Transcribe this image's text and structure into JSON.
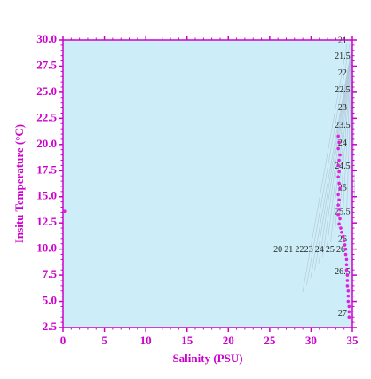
{
  "chart_data": {
    "type": "scatter",
    "x_label": "Salinity (PSU)",
    "y_label": "Insitu Temperature (°C)",
    "xlim": [
      0,
      35
    ],
    "xticks": [
      0,
      5,
      10,
      15,
      20,
      25,
      30,
      35
    ],
    "ylim": [
      2.5,
      30
    ],
    "yticks": [
      2.5,
      {
        "value": 5,
        "label": "5.0"
      },
      7.5,
      {
        "value": 10,
        "label": "10.0"
      },
      12.5,
      {
        "value": 15,
        "label": "15.0"
      },
      17.5,
      {
        "value": 20,
        "label": "20.0"
      },
      22.5,
      {
        "value": 25,
        "label": "25.0"
      },
      27.5,
      {
        "value": 30,
        "label": "30.0"
      }
    ],
    "color": "#e020e0",
    "x": [
      33.3,
      33.4,
      33.3,
      33.5,
      33.4,
      33.3,
      33.4,
      33.3,
      33.4,
      33.5,
      33.3,
      33.4,
      33.3,
      33.4,
      33.3,
      33.5,
      33.4,
      33.6,
      33.7,
      33.9,
      34.0,
      34.1,
      34.2,
      34.2,
      34.3,
      34.3,
      34.3,
      34.4,
      34.4,
      34.4,
      34.5,
      34.5,
      34.5,
      34.6,
      34.6,
      34.6,
      0.2
    ],
    "values": [
      20.8,
      20.2,
      19.6,
      19.0,
      18.5,
      18.0,
      17.4,
      16.9,
      16.3,
      15.8,
      15.2,
      14.7,
      14.2,
      13.8,
      13.3,
      12.9,
      12.4,
      12.0,
      11.6,
      11.2,
      10.8,
      10.4,
      10.0,
      9.5,
      9.0,
      8.5,
      8.0,
      7.5,
      7.0,
      6.5,
      6.0,
      5.5,
      5.0,
      4.5,
      4.0,
      3.5,
      13.6
    ],
    "annotations": [
      {
        "text": "21",
        "x": 33.8,
        "y": 29.9
      },
      {
        "text": "21.5",
        "x": 33.8,
        "y": 28.4
      },
      {
        "text": "22",
        "x": 33.8,
        "y": 26.8
      },
      {
        "text": "22.5",
        "x": 33.8,
        "y": 25.2
      },
      {
        "text": "23",
        "x": 33.8,
        "y": 23.5
      },
      {
        "text": "23.5",
        "x": 33.8,
        "y": 21.8
      },
      {
        "text": "24",
        "x": 33.8,
        "y": 20.1
      },
      {
        "text": "24.5",
        "x": 33.8,
        "y": 17.9
      },
      {
        "text": "25",
        "x": 33.8,
        "y": 15.8
      },
      {
        "text": "25.5",
        "x": 33.8,
        "y": 13.5
      },
      {
        "text": "26",
        "x": 33.8,
        "y": 10.9
      },
      {
        "text": "26.5",
        "x": 33.8,
        "y": 7.8
      },
      {
        "text": "27",
        "x": 33.8,
        "y": 3.8
      },
      {
        "text": "20",
        "x": 26.0,
        "y": 9.9
      },
      {
        "text": "21",
        "x": 27.3,
        "y": 9.9
      },
      {
        "text": "22",
        "x": 28.6,
        "y": 9.9
      },
      {
        "text": "23",
        "x": 29.7,
        "y": 9.9
      },
      {
        "text": "24",
        "x": 31.0,
        "y": 9.9
      },
      {
        "text": "25",
        "x": 32.3,
        "y": 9.9
      },
      {
        "text": "26",
        "x": 33.6,
        "y": 9.9
      }
    ]
  }
}
